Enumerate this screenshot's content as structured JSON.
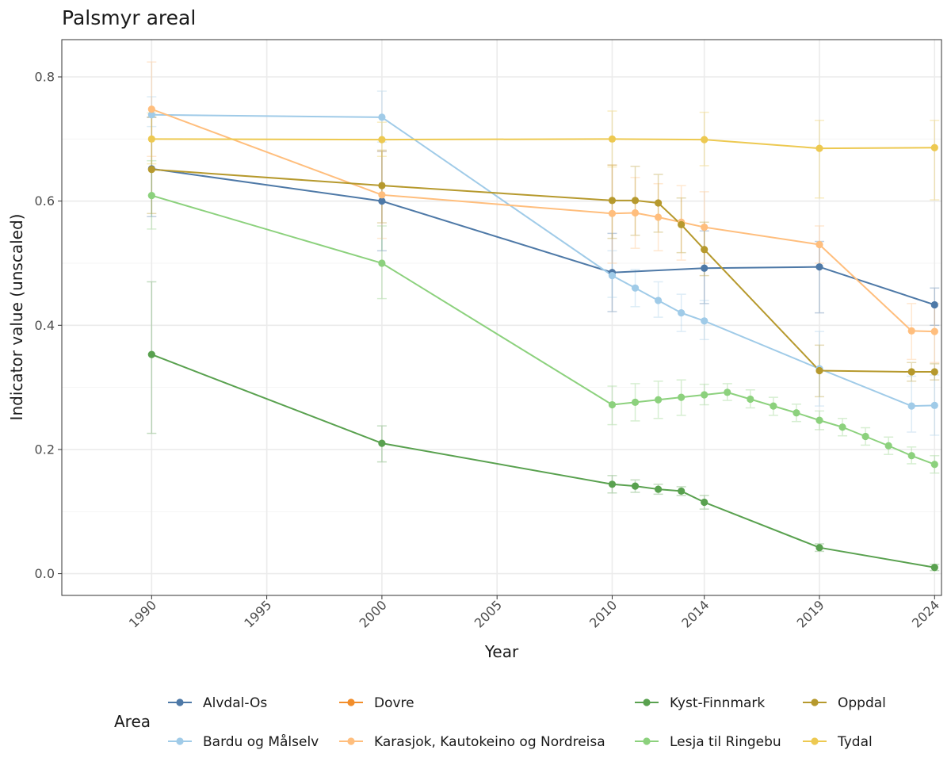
{
  "chart_data": {
    "type": "line",
    "title": "Palsmyr areal",
    "xlabel": "Year",
    "ylabel": "Indicator value (unscaled)",
    "xlim": [
      1986.1,
      2024.3
    ],
    "ylim": [
      -0.035,
      0.86
    ],
    "x_ticks": [
      1990,
      1995,
      2000,
      2005,
      2010,
      2014,
      2019,
      2024
    ],
    "x_tick_labels": [
      "1990",
      "1995",
      "2000",
      "2005",
      "2010",
      "2014",
      "2019",
      "2024"
    ],
    "y_ticks": [
      0.0,
      0.2,
      0.4,
      0.6,
      0.8
    ],
    "y_tick_labels": [
      "0.0",
      "0.2",
      "0.4",
      "0.6",
      "0.8"
    ],
    "grid": true,
    "legend_title": "Area",
    "legend_position": "bottom",
    "series": [
      {
        "name": "Alvdal-Os",
        "color": "#4e79a7",
        "points": [
          {
            "x": 1990,
            "y": 0.652,
            "lo": 0.575,
            "hi": 0.735
          },
          {
            "x": 2000,
            "y": 0.6,
            "lo": 0.52,
            "hi": 0.68
          },
          {
            "x": 2010,
            "y": 0.485,
            "lo": 0.422,
            "hi": 0.548
          },
          {
            "x": 2014,
            "y": 0.492,
            "lo": 0.435,
            "hi": 0.552
          },
          {
            "x": 2019,
            "y": 0.494,
            "lo": 0.42,
            "hi": 0.535
          },
          {
            "x": 2024,
            "y": 0.433,
            "lo": 0.4,
            "hi": 0.46
          }
        ]
      },
      {
        "name": "Bardu og Målselv",
        "color": "#a0cbe8",
        "points": [
          {
            "x": 1990,
            "y": 0.739,
            "lo": 0.72,
            "hi": 0.768
          },
          {
            "x": 2000,
            "y": 0.735,
            "lo": 0.695,
            "hi": 0.777
          },
          {
            "x": 2010,
            "y": 0.48,
            "lo": 0.445,
            "hi": 0.52
          },
          {
            "x": 2011,
            "y": 0.46,
            "lo": 0.43,
            "hi": 0.49
          },
          {
            "x": 2012,
            "y": 0.44,
            "lo": 0.413,
            "hi": 0.47
          },
          {
            "x": 2013,
            "y": 0.42,
            "lo": 0.39,
            "hi": 0.45
          },
          {
            "x": 2014,
            "y": 0.407,
            "lo": 0.377,
            "hi": 0.44
          },
          {
            "x": 2019,
            "y": 0.33,
            "lo": 0.27,
            "hi": 0.39
          },
          {
            "x": 2023,
            "y": 0.27,
            "lo": 0.228,
            "hi": 0.318
          },
          {
            "x": 2024,
            "y": 0.271,
            "lo": 0.223,
            "hi": 0.32
          }
        ]
      },
      {
        "name": "Dovre",
        "color": "#f28e2b",
        "points": []
      },
      {
        "name": "Karasjok, Kautokeino og Nordreisa",
        "color": "#ffbe7d",
        "points": [
          {
            "x": 1990,
            "y": 0.748,
            "lo": 0.672,
            "hi": 0.824
          },
          {
            "x": 2000,
            "y": 0.61,
            "lo": 0.54,
            "hi": 0.68
          },
          {
            "x": 2010,
            "y": 0.58,
            "lo": 0.5,
            "hi": 0.658
          },
          {
            "x": 2011,
            "y": 0.581,
            "lo": 0.524,
            "hi": 0.638
          },
          {
            "x": 2012,
            "y": 0.574,
            "lo": 0.52,
            "hi": 0.628
          },
          {
            "x": 2013,
            "y": 0.566,
            "lo": 0.505,
            "hi": 0.625
          },
          {
            "x": 2014,
            "y": 0.558,
            "lo": 0.5,
            "hi": 0.615
          },
          {
            "x": 2019,
            "y": 0.53,
            "lo": 0.5,
            "hi": 0.56
          },
          {
            "x": 2023,
            "y": 0.391,
            "lo": 0.345,
            "hi": 0.435
          },
          {
            "x": 2024,
            "y": 0.39,
            "lo": 0.34,
            "hi": 0.435
          }
        ]
      },
      {
        "name": "Kyst-Finnmark",
        "color": "#59a14f",
        "points": [
          {
            "x": 1990,
            "y": 0.353,
            "lo": 0.226,
            "hi": 0.47
          },
          {
            "x": 2000,
            "y": 0.21,
            "lo": 0.18,
            "hi": 0.238
          },
          {
            "x": 2010,
            "y": 0.144,
            "lo": 0.13,
            "hi": 0.158
          },
          {
            "x": 2011,
            "y": 0.141,
            "lo": 0.131,
            "hi": 0.151
          },
          {
            "x": 2012,
            "y": 0.136,
            "lo": 0.128,
            "hi": 0.144
          },
          {
            "x": 2013,
            "y": 0.133,
            "lo": 0.126,
            "hi": 0.14
          },
          {
            "x": 2014,
            "y": 0.115,
            "lo": 0.104,
            "hi": 0.126
          },
          {
            "x": 2019,
            "y": 0.042,
            "lo": 0.036,
            "hi": 0.048
          },
          {
            "x": 2024,
            "y": 0.01,
            "lo": 0.005,
            "hi": 0.015
          }
        ]
      },
      {
        "name": "Lesja til Ringebu",
        "color": "#8cd17d",
        "points": [
          {
            "x": 1990,
            "y": 0.609,
            "lo": 0.555,
            "hi": 0.665
          },
          {
            "x": 2000,
            "y": 0.5,
            "lo": 0.443,
            "hi": 0.56
          },
          {
            "x": 2010,
            "y": 0.272,
            "lo": 0.24,
            "hi": 0.302
          },
          {
            "x": 2011,
            "y": 0.276,
            "lo": 0.246,
            "hi": 0.306
          },
          {
            "x": 2012,
            "y": 0.28,
            "lo": 0.25,
            "hi": 0.31
          },
          {
            "x": 2013,
            "y": 0.284,
            "lo": 0.255,
            "hi": 0.312
          },
          {
            "x": 2014,
            "y": 0.288,
            "lo": 0.272,
            "hi": 0.305
          },
          {
            "x": 2015,
            "y": 0.292,
            "lo": 0.279,
            "hi": 0.306
          },
          {
            "x": 2016,
            "y": 0.281,
            "lo": 0.267,
            "hi": 0.296
          },
          {
            "x": 2017,
            "y": 0.27,
            "lo": 0.255,
            "hi": 0.284
          },
          {
            "x": 2018,
            "y": 0.259,
            "lo": 0.245,
            "hi": 0.273
          },
          {
            "x": 2019,
            "y": 0.247,
            "lo": 0.232,
            "hi": 0.262
          },
          {
            "x": 2020,
            "y": 0.236,
            "lo": 0.222,
            "hi": 0.25
          },
          {
            "x": 2021,
            "y": 0.221,
            "lo": 0.207,
            "hi": 0.235
          },
          {
            "x": 2022,
            "y": 0.206,
            "lo": 0.192,
            "hi": 0.22
          },
          {
            "x": 2023,
            "y": 0.19,
            "lo": 0.177,
            "hi": 0.204
          },
          {
            "x": 2024,
            "y": 0.176,
            "lo": 0.162,
            "hi": 0.19
          }
        ]
      },
      {
        "name": "Oppdal",
        "color": "#b6992d",
        "points": [
          {
            "x": 1990,
            "y": 0.651,
            "lo": 0.58,
            "hi": 0.735
          },
          {
            "x": 2000,
            "y": 0.625,
            "lo": 0.565,
            "hi": 0.682
          },
          {
            "x": 2010,
            "y": 0.601,
            "lo": 0.54,
            "hi": 0.658
          },
          {
            "x": 2011,
            "y": 0.601,
            "lo": 0.545,
            "hi": 0.656
          },
          {
            "x": 2012,
            "y": 0.597,
            "lo": 0.55,
            "hi": 0.643
          },
          {
            "x": 2013,
            "y": 0.562,
            "lo": 0.517,
            "hi": 0.605
          },
          {
            "x": 2014,
            "y": 0.522,
            "lo": 0.48,
            "hi": 0.566
          },
          {
            "x": 2019,
            "y": 0.327,
            "lo": 0.285,
            "hi": 0.368
          },
          {
            "x": 2023,
            "y": 0.325,
            "lo": 0.31,
            "hi": 0.34
          },
          {
            "x": 2024,
            "y": 0.325,
            "lo": 0.312,
            "hi": 0.338
          }
        ]
      },
      {
        "name": "Tydal",
        "color": "#edc951",
        "points": [
          {
            "x": 1990,
            "y": 0.7,
            "lo": 0.66,
            "hi": 0.742
          },
          {
            "x": 2000,
            "y": 0.699,
            "lo": 0.672,
            "hi": 0.727
          },
          {
            "x": 2010,
            "y": 0.7,
            "lo": 0.655,
            "hi": 0.745
          },
          {
            "x": 2014,
            "y": 0.699,
            "lo": 0.657,
            "hi": 0.743
          },
          {
            "x": 2019,
            "y": 0.685,
            "lo": 0.605,
            "hi": 0.73
          },
          {
            "x": 2024,
            "y": 0.686,
            "lo": 0.602,
            "hi": 0.73
          }
        ]
      }
    ]
  }
}
